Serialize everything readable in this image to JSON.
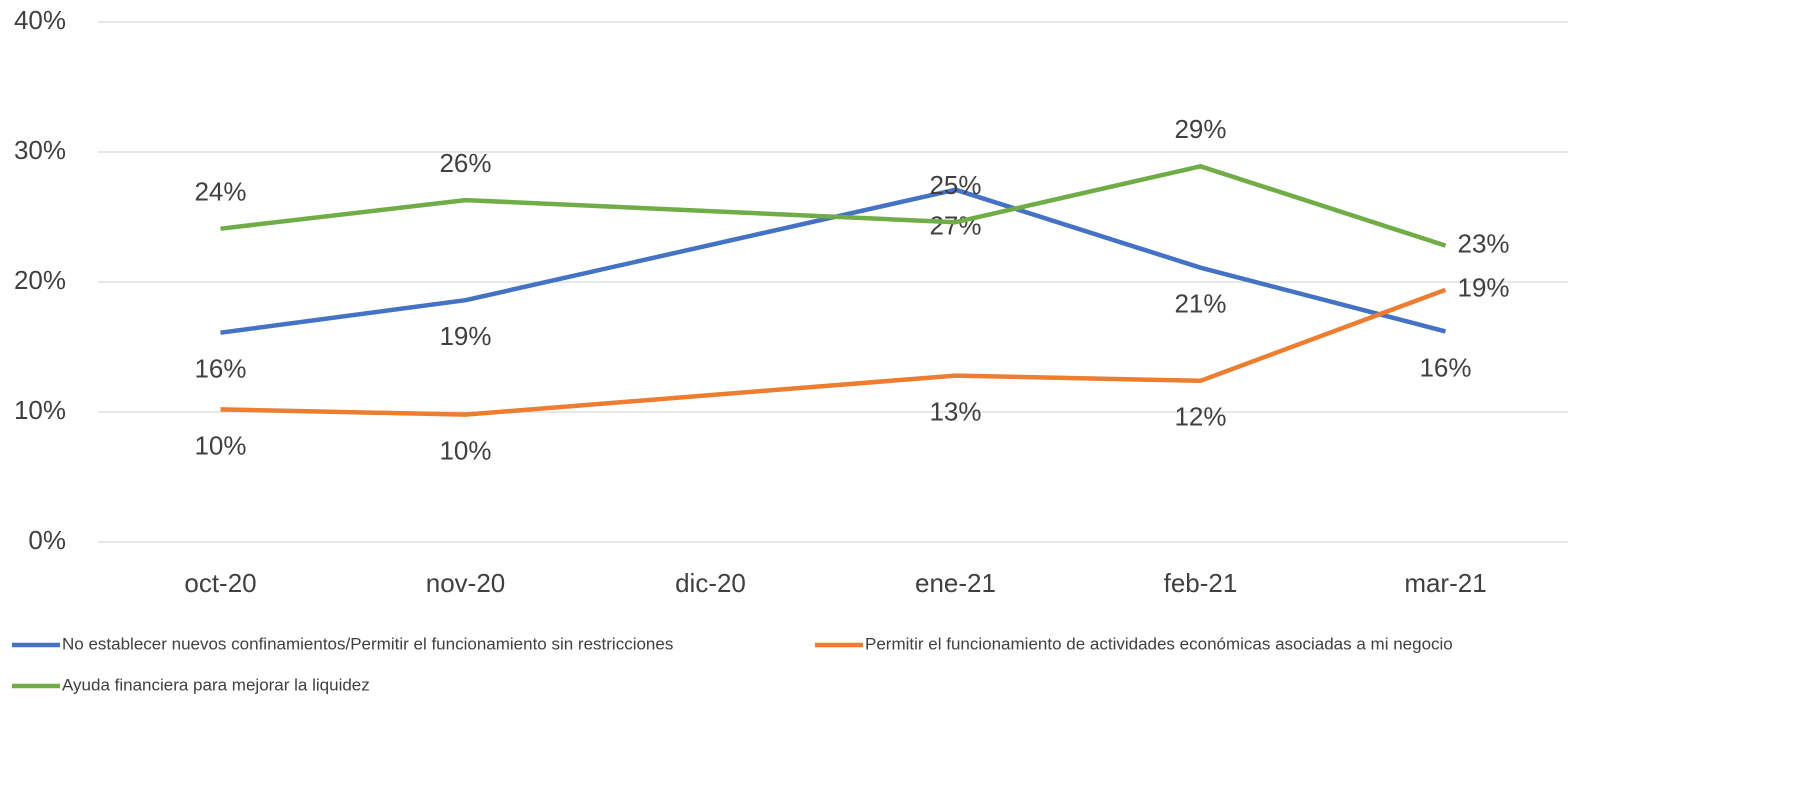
{
  "chart_data": {
    "type": "line",
    "categories": [
      "oct-20",
      "nov-20",
      "dic-20",
      "ene-21",
      "feb-21",
      "mar-21"
    ],
    "series": [
      {
        "name": "No establecer nuevos confinamientos/Permitir el funcionamiento sin restricciones",
        "color": "#4472c4",
        "values": [
          16.1,
          18.6,
          null,
          27.1,
          21.1,
          16.2
        ],
        "value_labels": [
          "16%",
          "19%",
          null,
          "27%",
          "21%",
          "16%"
        ]
      },
      {
        "name": "Permitir el funcionamiento de actividades económicas asociadas a mi negocio",
        "color": "#ed7d31",
        "values": [
          10.2,
          9.8,
          null,
          12.8,
          12.4,
          19.4
        ],
        "value_labels": [
          "10%",
          "10%",
          null,
          "13%",
          "12%",
          "19%"
        ]
      },
      {
        "name": "Ayuda financiera para mejorar la liquidez",
        "color": "#70ad47",
        "values": [
          24.1,
          26.3,
          null,
          24.6,
          28.9,
          22.8
        ],
        "value_labels": [
          "24%",
          "26%",
          null,
          "25%",
          "29%",
          "23%"
        ]
      }
    ],
    "ylim": [
      0,
      40
    ],
    "yticks": [
      {
        "value": 0,
        "label": "0%"
      },
      {
        "value": 10,
        "label": "10%"
      },
      {
        "value": 20,
        "label": "20%"
      },
      {
        "value": 30,
        "label": "30%"
      },
      {
        "value": 40,
        "label": "40%"
      }
    ],
    "grid": true,
    "connect_gaps": true,
    "legend": "bottom"
  }
}
